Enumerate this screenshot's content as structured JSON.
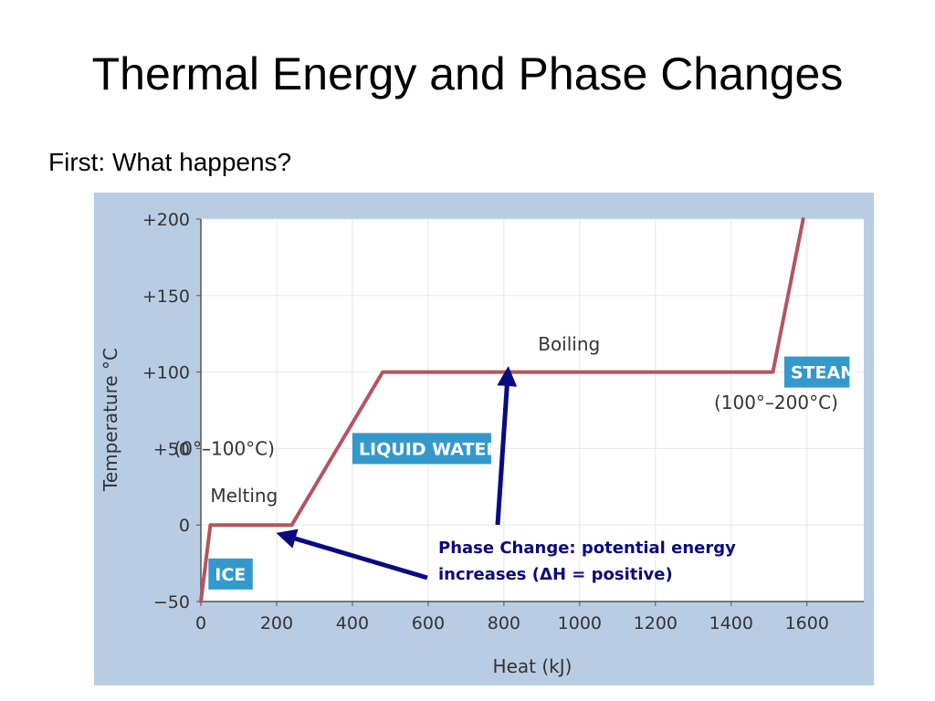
{
  "slide": {
    "title": "Thermal Energy and Phase Changes",
    "subtitle": "First: What happens?"
  },
  "chart_data": {
    "type": "line",
    "xlabel": "Heat (kJ)",
    "ylabel": "Temperature °C",
    "xlim": [
      0,
      1750
    ],
    "ylim": [
      -50,
      200
    ],
    "x_ticks": [
      0,
      200,
      400,
      600,
      800,
      1000,
      1200,
      1400,
      1600
    ],
    "y_ticks": [
      -50,
      0,
      50,
      100,
      150,
      200
    ],
    "y_tick_labels": [
      "−50",
      "0",
      "+50",
      "+100",
      "+150",
      "+200"
    ],
    "grid": true,
    "series": [
      {
        "x": [
          0,
          25,
          240,
          480,
          1510,
          1590
        ],
        "y": [
          -50,
          0,
          0,
          100,
          100,
          200
        ]
      }
    ],
    "phase_labels": [
      {
        "text": "Melting",
        "x": 25,
        "y": 15
      },
      {
        "text": "Boiling",
        "x": 890,
        "y": 114
      }
    ],
    "badges": [
      {
        "text": "ICE",
        "x": 20,
        "y": -32
      },
      {
        "text": "LIQUID WATER",
        "x": 400,
        "y": 50
      },
      {
        "text": "STEAM",
        "x": 1540,
        "y": 100
      }
    ],
    "ranges": [
      {
        "text": "(0°–100°C)",
        "x": 840,
        "y": 50
      },
      {
        "text": "(100°–200°C)",
        "x": 1545,
        "y": 80
      }
    ],
    "note": {
      "lines": [
        "Phase Change: potential energy",
        "increases (ΔH = positive)"
      ],
      "x": 628,
      "y": -17
    },
    "colors": {
      "line": "#b5545f",
      "badge": "#3399cc",
      "arrow": "#0a0a80",
      "frame": "#b8cde3",
      "plot_bg": "#ffffff",
      "grid": "#e6e6e6"
    }
  }
}
